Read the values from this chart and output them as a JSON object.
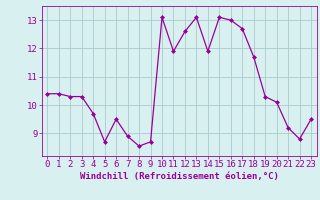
{
  "x": [
    0,
    1,
    2,
    3,
    4,
    5,
    6,
    7,
    8,
    9,
    10,
    11,
    12,
    13,
    14,
    15,
    16,
    17,
    18,
    19,
    20,
    21,
    22,
    23
  ],
  "y": [
    10.4,
    10.4,
    10.3,
    10.3,
    9.7,
    8.7,
    9.5,
    8.9,
    8.55,
    8.7,
    13.1,
    11.9,
    12.6,
    13.1,
    11.9,
    13.1,
    13.0,
    12.7,
    11.7,
    10.3,
    10.1,
    9.2,
    8.8,
    9.5
  ],
  "line_color": "#990099",
  "marker": "D",
  "marker_size": 2,
  "bg_color": "#d8f0f0",
  "grid_color": "#aacccc",
  "ylabel_ticks": [
    9,
    10,
    11,
    12,
    13
  ],
  "ylim": [
    8.2,
    13.5
  ],
  "xlim": [
    -0.5,
    23.5
  ],
  "xlabel": "Windchill (Refroidissement éolien,°C)",
  "xlabel_fontsize": 6.5,
  "tick_fontsize": 6.5,
  "tick_color": "#990099"
}
